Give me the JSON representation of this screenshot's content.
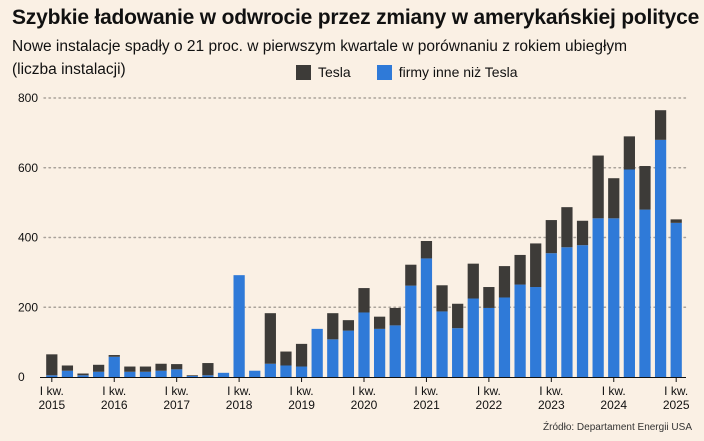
{
  "title": "Szybkie ładowanie w odwrocie przez zmiany w amerykańskiej polityce",
  "subtitle": "Nowe instalacje spadły o 21 proc. w pierwszym kwartale w porównaniu z rokiem ubiegłym",
  "unit_note": "(liczba instalacji)",
  "source": "Źródło: Departament Energii USA",
  "colors": {
    "tesla": "#3d3b38",
    "others": "#2f7ad8",
    "grid": "#a9a29a",
    "background": "#faf0e4"
  },
  "chart_data": {
    "type": "bar",
    "stacked": true,
    "ylim": [
      0,
      800
    ],
    "yticks": [
      0,
      200,
      400,
      600,
      800
    ],
    "grid": "horizontal dotted",
    "legend_position": "top-center",
    "x_tick_labels": [
      {
        "line1": "I kw.",
        "line2": "2015",
        "index": 0
      },
      {
        "line1": "I kw.",
        "line2": "2016",
        "index": 4
      },
      {
        "line1": "I kw.",
        "line2": "2017",
        "index": 8
      },
      {
        "line1": "I kw.",
        "line2": "2018",
        "index": 12
      },
      {
        "line1": "I kw.",
        "line2": "2019",
        "index": 16
      },
      {
        "line1": "I kw.",
        "line2": "2020",
        "index": 20
      },
      {
        "line1": "I kw.",
        "line2": "2021",
        "index": 24
      },
      {
        "line1": "I kw.",
        "line2": "2022",
        "index": 28
      },
      {
        "line1": "I kw.",
        "line2": "2023",
        "index": 32
      },
      {
        "line1": "I kw.",
        "line2": "2024",
        "index": 36
      },
      {
        "line1": "I kw.",
        "line2": "2025",
        "index": 40
      }
    ],
    "series": [
      {
        "name": "firmy inne niż Tesla",
        "values": [
          5,
          18,
          5,
          15,
          58,
          15,
          15,
          18,
          22,
          3,
          5,
          12,
          292,
          18,
          38,
          33,
          30,
          138,
          108,
          133,
          185,
          138,
          148,
          262,
          340,
          188,
          140,
          225,
          198,
          228,
          265,
          258,
          355,
          372,
          378,
          455,
          455,
          595,
          480,
          680,
          442
        ]
      },
      {
        "name": "Tesla",
        "values": [
          60,
          15,
          5,
          20,
          5,
          15,
          15,
          20,
          15,
          2,
          35,
          0,
          0,
          0,
          145,
          40,
          65,
          0,
          75,
          30,
          70,
          35,
          50,
          60,
          50,
          75,
          70,
          100,
          60,
          90,
          85,
          125,
          95,
          115,
          70,
          180,
          115,
          95,
          125,
          85,
          10
        ]
      }
    ]
  }
}
